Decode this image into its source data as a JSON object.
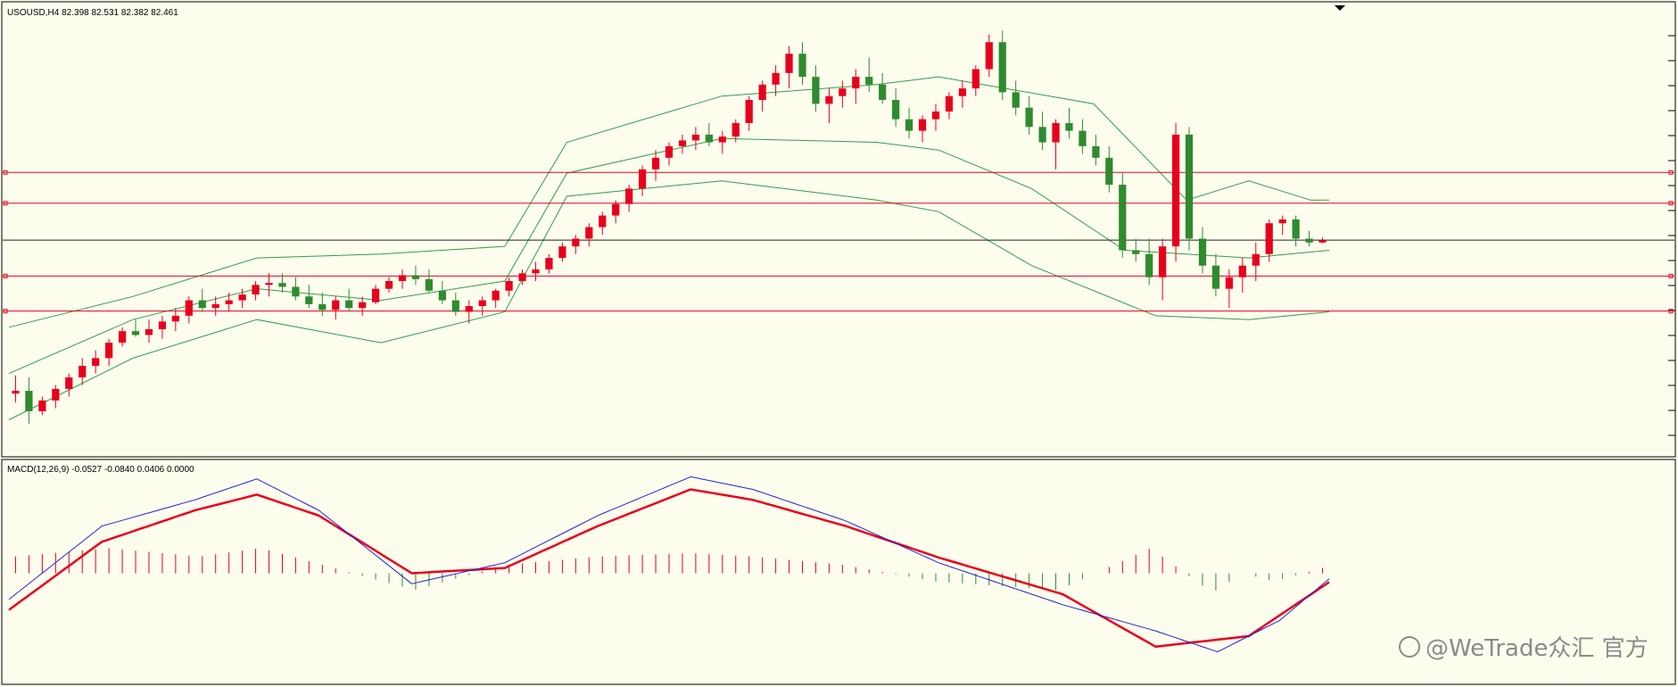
{
  "header": {
    "symbol_label": "USOUSD,H4  82.398 82.531 82.382 82.461"
  },
  "macd_header": {
    "label": "MACD(12,26,9) -0.0527 -0.0840 0.0406 0.0000"
  },
  "watermark": {
    "text": "@WeTrade众汇 官方"
  },
  "colors": {
    "bull": "#e8001c",
    "bear": "#2e8b2e",
    "bands": "#2f9e4a",
    "level": "#e8001c",
    "current": "#222222",
    "macd_line": "#2222dd",
    "signal_line": "#e8001c",
    "background": "#fdfdee"
  },
  "chart_data": [
    {
      "type": "candlestick",
      "title": "USOUSD,H4",
      "ohlc_last": {
        "open": 82.398,
        "high": 82.531,
        "low": 82.382,
        "close": 82.461
      },
      "ylim": [
        77.0,
        88.0
      ],
      "current_price": 82.461,
      "horizontal_levels": [
        84.22,
        83.42,
        81.53,
        80.62
      ],
      "candles": [
        [
          78.48,
          78.95,
          78.25,
          78.55
        ],
        [
          78.55,
          78.9,
          77.7,
          78.02
        ],
        [
          78.02,
          78.4,
          77.92,
          78.3
        ],
        [
          78.3,
          78.7,
          78.1,
          78.6
        ],
        [
          78.6,
          79.0,
          78.4,
          78.9
        ],
        [
          78.9,
          79.4,
          78.7,
          79.2
        ],
        [
          79.2,
          79.6,
          79.0,
          79.4
        ],
        [
          79.4,
          79.9,
          79.2,
          79.8
        ],
        [
          79.8,
          80.2,
          79.7,
          80.1
        ],
        [
          80.1,
          80.4,
          79.95,
          80.0
        ],
        [
          80.0,
          80.4,
          79.8,
          80.15
        ],
        [
          80.15,
          80.5,
          79.9,
          80.35
        ],
        [
          80.35,
          80.7,
          80.1,
          80.5
        ],
        [
          80.5,
          81.0,
          80.3,
          80.9
        ],
        [
          80.9,
          81.2,
          80.6,
          80.7
        ],
        [
          80.7,
          81.0,
          80.5,
          80.8
        ],
        [
          80.8,
          81.1,
          80.6,
          80.9
        ],
        [
          80.9,
          81.2,
          80.7,
          81.05
        ],
        [
          81.05,
          81.4,
          80.9,
          81.3
        ],
        [
          81.3,
          81.6,
          81.0,
          81.35
        ],
        [
          81.35,
          81.6,
          81.1,
          81.25
        ],
        [
          81.25,
          81.5,
          80.9,
          81.0
        ],
        [
          81.0,
          81.3,
          80.7,
          80.8
        ],
        [
          80.8,
          81.1,
          80.5,
          80.65
        ],
        [
          80.65,
          81.0,
          80.4,
          80.9
        ],
        [
          80.9,
          81.2,
          80.6,
          80.7
        ],
        [
          80.7,
          81.0,
          80.5,
          80.85
        ],
        [
          80.85,
          81.3,
          80.8,
          81.2
        ],
        [
          81.2,
          81.5,
          81.1,
          81.4
        ],
        [
          81.4,
          81.7,
          81.2,
          81.55
        ],
        [
          81.55,
          81.8,
          81.3,
          81.45
        ],
        [
          81.45,
          81.7,
          81.1,
          81.15
        ],
        [
          81.15,
          81.4,
          80.8,
          80.9
        ],
        [
          80.9,
          81.1,
          80.5,
          80.6
        ],
        [
          80.6,
          80.9,
          80.3,
          80.75
        ],
        [
          80.75,
          81.0,
          80.5,
          80.9
        ],
        [
          80.9,
          81.2,
          80.7,
          81.15
        ],
        [
          81.15,
          81.5,
          81.0,
          81.4
        ],
        [
          81.4,
          81.7,
          81.3,
          81.6
        ],
        [
          81.6,
          81.9,
          81.4,
          81.7
        ],
        [
          81.7,
          82.1,
          81.6,
          82.0
        ],
        [
          82.0,
          82.4,
          81.9,
          82.3
        ],
        [
          82.3,
          82.6,
          82.1,
          82.5
        ],
        [
          82.5,
          82.9,
          82.3,
          82.8
        ],
        [
          82.8,
          83.2,
          82.6,
          83.1
        ],
        [
          83.1,
          83.5,
          82.9,
          83.4
        ],
        [
          83.4,
          83.9,
          83.2,
          83.8
        ],
        [
          83.8,
          84.4,
          83.6,
          84.3
        ],
        [
          84.3,
          84.8,
          84.0,
          84.6
        ],
        [
          84.6,
          85.0,
          84.4,
          84.9
        ],
        [
          84.9,
          85.2,
          84.7,
          85.05
        ],
        [
          85.05,
          85.4,
          84.8,
          85.2
        ],
        [
          85.2,
          85.5,
          84.9,
          85.0
        ],
        [
          85.0,
          85.3,
          84.7,
          85.15
        ],
        [
          85.15,
          85.6,
          85.0,
          85.5
        ],
        [
          85.5,
          86.2,
          85.3,
          86.1
        ],
        [
          86.1,
          86.6,
          85.8,
          86.5
        ],
        [
          86.5,
          87.0,
          86.2,
          86.8
        ],
        [
          86.8,
          87.5,
          86.4,
          87.3
        ],
        [
          87.3,
          87.6,
          86.5,
          86.7
        ],
        [
          86.7,
          87.0,
          85.8,
          86.0
        ],
        [
          86.0,
          86.4,
          85.5,
          86.2
        ],
        [
          86.2,
          86.6,
          85.9,
          86.4
        ],
        [
          86.4,
          86.9,
          86.0,
          86.7
        ],
        [
          86.7,
          87.2,
          86.3,
          86.5
        ],
        [
          86.5,
          86.8,
          86.0,
          86.1
        ],
        [
          86.1,
          86.4,
          85.4,
          85.6
        ],
        [
          85.6,
          85.9,
          85.1,
          85.3
        ],
        [
          85.3,
          85.7,
          85.0,
          85.6
        ],
        [
          85.6,
          86.0,
          85.3,
          85.8
        ],
        [
          85.8,
          86.3,
          85.6,
          86.2
        ],
        [
          86.2,
          86.6,
          85.9,
          86.4
        ],
        [
          86.4,
          87.0,
          86.2,
          86.9
        ],
        [
          86.9,
          87.8,
          86.7,
          87.6
        ],
        [
          87.6,
          87.9,
          86.1,
          86.3
        ],
        [
          86.3,
          86.6,
          85.7,
          85.9
        ],
        [
          85.9,
          86.2,
          85.2,
          85.4
        ],
        [
          85.4,
          85.8,
          84.8,
          85.0
        ],
        [
          85.0,
          85.6,
          84.3,
          85.5
        ],
        [
          85.5,
          85.9,
          85.1,
          85.3
        ],
        [
          85.3,
          85.6,
          84.7,
          84.9
        ],
        [
          84.9,
          85.2,
          84.4,
          84.6
        ],
        [
          84.6,
          84.9,
          83.7,
          83.9
        ],
        [
          83.9,
          84.2,
          82.0,
          82.2
        ],
        [
          82.2,
          82.5,
          81.9,
          82.1
        ],
        [
          82.1,
          82.5,
          81.3,
          81.5
        ],
        [
          81.5,
          82.5,
          80.9,
          82.3
        ],
        [
          82.3,
          85.5,
          81.9,
          85.2
        ],
        [
          85.2,
          85.4,
          82.2,
          82.5
        ],
        [
          82.5,
          82.8,
          81.6,
          81.8
        ],
        [
          81.8,
          82.1,
          81.0,
          81.2
        ],
        [
          81.2,
          81.7,
          80.7,
          81.5
        ],
        [
          81.5,
          82.0,
          81.1,
          81.8
        ],
        [
          81.8,
          82.4,
          81.4,
          82.1
        ],
        [
          82.1,
          83.0,
          81.9,
          82.9
        ],
        [
          82.9,
          83.1,
          82.6,
          83.0
        ],
        [
          83.0,
          83.1,
          82.3,
          82.5
        ],
        [
          82.5,
          82.7,
          82.3,
          82.4
        ],
        [
          82.4,
          82.531,
          82.382,
          82.461
        ]
      ],
      "bollinger": {
        "upper": [
          [
            0,
            80.2
          ],
          [
            20,
            81.0
          ],
          [
            40,
            82.0
          ],
          [
            60,
            82.1
          ],
          [
            80,
            82.3
          ],
          [
            90,
            85.0
          ],
          [
            115,
            86.2
          ],
          [
            140,
            86.5
          ],
          [
            150,
            86.7
          ],
          [
            175,
            86.0
          ],
          [
            190,
            83.5
          ],
          [
            200,
            84.0
          ],
          [
            210,
            83.5
          ],
          [
            213,
            83.5
          ]
        ],
        "middle": [
          [
            0,
            79.0
          ],
          [
            20,
            80.4
          ],
          [
            40,
            81.2
          ],
          [
            60,
            80.9
          ],
          [
            80,
            81.4
          ],
          [
            90,
            84.2
          ],
          [
            115,
            85.1
          ],
          [
            140,
            85.0
          ],
          [
            150,
            84.8
          ],
          [
            165,
            83.8
          ],
          [
            180,
            82.2
          ],
          [
            200,
            82.0
          ],
          [
            213,
            82.2
          ]
        ],
        "lower": [
          [
            0,
            77.8
          ],
          [
            20,
            79.4
          ],
          [
            40,
            80.4
          ],
          [
            60,
            79.8
          ],
          [
            80,
            80.6
          ],
          [
            90,
            83.6
          ],
          [
            115,
            84.0
          ],
          [
            140,
            83.5
          ],
          [
            150,
            83.2
          ],
          [
            165,
            81.8
          ],
          [
            185,
            80.5
          ],
          [
            200,
            80.4
          ],
          [
            213,
            80.6
          ]
        ]
      }
    },
    {
      "type": "macd",
      "title": "MACD(12,26,9)",
      "values": {
        "macd": -0.0527,
        "signal": -0.084,
        "histogram": 0.0406,
        "zero": 0.0
      },
      "ylim": [
        -1.0,
        1.0
      ],
      "macd_line": [
        [
          0,
          -0.25
        ],
        [
          15,
          0.45
        ],
        [
          30,
          0.7
        ],
        [
          40,
          0.9
        ],
        [
          50,
          0.6
        ],
        [
          65,
          -0.1
        ],
        [
          80,
          0.1
        ],
        [
          95,
          0.55
        ],
        [
          110,
          0.92
        ],
        [
          120,
          0.8
        ],
        [
          135,
          0.5
        ],
        [
          150,
          0.1
        ],
        [
          170,
          -0.3
        ],
        [
          185,
          -0.55
        ],
        [
          195,
          -0.75
        ],
        [
          205,
          -0.45
        ],
        [
          213,
          -0.0527
        ]
      ],
      "signal_line": [
        [
          0,
          -0.35
        ],
        [
          15,
          0.3
        ],
        [
          30,
          0.6
        ],
        [
          40,
          0.75
        ],
        [
          50,
          0.55
        ],
        [
          65,
          0.0
        ],
        [
          80,
          0.05
        ],
        [
          95,
          0.45
        ],
        [
          110,
          0.8
        ],
        [
          120,
          0.7
        ],
        [
          135,
          0.45
        ],
        [
          150,
          0.15
        ],
        [
          170,
          -0.2
        ],
        [
          185,
          -0.7
        ],
        [
          200,
          -0.6
        ],
        [
          213,
          -0.084
        ]
      ]
    }
  ]
}
